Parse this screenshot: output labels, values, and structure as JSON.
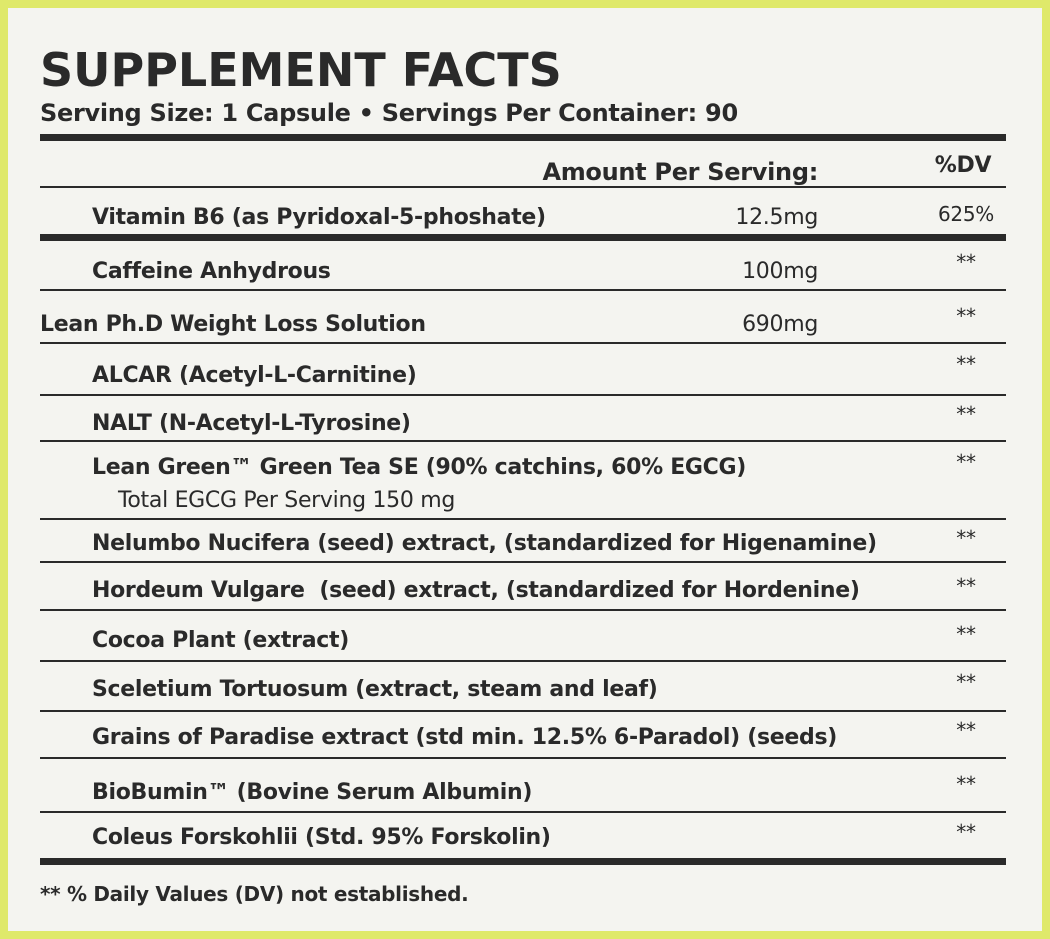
{
  "header": {
    "title": "SUPPLEMENT FACTS",
    "serving": "Serving Size: 1 Capsule • Servings Per Container: 90"
  },
  "table": {
    "columns": [
      "Amount Per Serving:",
      "%DV"
    ],
    "rows": [
      {
        "name": "Vitamin B6 (as Pyridoxal-5-phoshate)",
        "amount": "12.5mg",
        "dv": "625%"
      },
      {
        "name": "Caffeine Anhydrous",
        "amount": "100mg",
        "dv": "**"
      },
      {
        "name": "Lean Ph.D Weight Loss Solution",
        "amount": "690mg",
        "dv": "**"
      },
      {
        "name": "ALCAR (Acetyl-L-Carnitine)",
        "dv": "**"
      },
      {
        "name": "NALT (N-Acetyl-L-Tyrosine)",
        "dv": "**"
      },
      {
        "name": "Lean Green™ Green Tea SE (90% catchins, 60% EGCG)",
        "detail": "Total EGCG Per Serving 150 mg",
        "dv": "**"
      },
      {
        "name": "Nelumbo Nucifera (seed) extract, (standardized for Higenamine)",
        "dv": "**"
      },
      {
        "name": "Hordeum Vulgare  (seed) extract, (standardized for Hordenine)",
        "dv": "**"
      },
      {
        "name": "Cocoa Plant (extract)",
        "dv": "**"
      },
      {
        "name": "Sceletium Tortuosum (extract, steam and leaf)",
        "dv": "**"
      },
      {
        "name": "Grains of Paradise extract (std min. 12.5% 6-Paradol) (seeds)",
        "dv": "**"
      },
      {
        "name": "BioBumin™ (Bovine Serum Albumin)",
        "dv": "**"
      },
      {
        "name": "Coleus Forskohlii (Std. 95% Forskolin)",
        "dv": "**"
      }
    ]
  },
  "footnote": "** % Daily Values (DV) not established."
}
